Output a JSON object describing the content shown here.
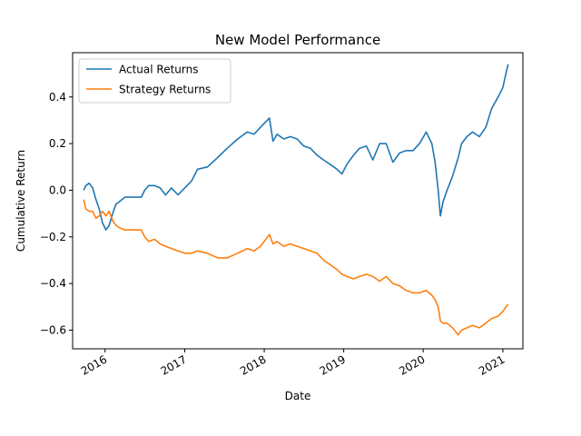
{
  "chart_data": {
    "type": "line",
    "title": "New Model Performance",
    "xlabel": "Date",
    "ylabel": "Cumulative Return",
    "x_type": "date",
    "xlim": [
      "2015-08-05",
      "2021-04-03"
    ],
    "ylim": [
      -0.68,
      0.59
    ],
    "x_ticks": [
      "2016-01-01",
      "2017-01-01",
      "2018-01-01",
      "2019-01-01",
      "2020-01-01",
      "2021-01-01"
    ],
    "x_tick_labels": [
      "2016",
      "2017",
      "2018",
      "2019",
      "2020",
      "2021"
    ],
    "y_ticks": [
      0.4,
      0.2,
      0.0,
      -0.2,
      -0.4,
      -0.6
    ],
    "y_tick_labels": [
      "0.4",
      "0.2",
      "0.0",
      "−0.2",
      "−0.4",
      "−0.6"
    ],
    "grid": false,
    "legend": "top-left",
    "series": [
      {
        "name": "Actual Returns",
        "color": "#1f77b4",
        "points": [
          [
            "2015-09-25",
            0.0
          ],
          [
            "2015-10-05",
            0.02
          ],
          [
            "2015-10-20",
            0.03
          ],
          [
            "2015-11-05",
            0.01
          ],
          [
            "2015-11-20",
            -0.04
          ],
          [
            "2015-12-05",
            -0.08
          ],
          [
            "2015-12-20",
            -0.14
          ],
          [
            "2016-01-05",
            -0.17
          ],
          [
            "2016-01-20",
            -0.15
          ],
          [
            "2016-02-05",
            -0.1
          ],
          [
            "2016-02-20",
            -0.06
          ],
          [
            "2016-03-05",
            -0.05
          ],
          [
            "2016-04-01",
            -0.03
          ],
          [
            "2016-06-15",
            -0.03
          ],
          [
            "2016-07-01",
            0.0
          ],
          [
            "2016-07-20",
            0.02
          ],
          [
            "2016-08-15",
            0.02
          ],
          [
            "2016-09-10",
            0.01
          ],
          [
            "2016-10-05",
            -0.02
          ],
          [
            "2016-11-01",
            0.01
          ],
          [
            "2016-12-01",
            -0.02
          ],
          [
            "2017-01-01",
            0.01
          ],
          [
            "2017-02-01",
            0.04
          ],
          [
            "2017-03-01",
            0.09
          ],
          [
            "2017-04-15",
            0.1
          ],
          [
            "2017-06-01",
            0.14
          ],
          [
            "2017-07-15",
            0.18
          ],
          [
            "2017-09-01",
            0.22
          ],
          [
            "2017-10-15",
            0.25
          ],
          [
            "2017-11-15",
            0.24
          ],
          [
            "2017-12-15",
            0.27
          ],
          [
            "2018-01-25",
            0.31
          ],
          [
            "2018-02-10",
            0.21
          ],
          [
            "2018-03-01",
            0.24
          ],
          [
            "2018-04-01",
            0.22
          ],
          [
            "2018-05-01",
            0.23
          ],
          [
            "2018-06-01",
            0.22
          ],
          [
            "2018-07-01",
            0.19
          ],
          [
            "2018-08-01",
            0.18
          ],
          [
            "2018-09-01",
            0.15
          ],
          [
            "2018-10-01",
            0.13
          ],
          [
            "2018-11-01",
            0.11
          ],
          [
            "2018-12-01",
            0.09
          ],
          [
            "2018-12-24",
            0.07
          ],
          [
            "2019-01-15",
            0.11
          ],
          [
            "2019-02-15",
            0.15
          ],
          [
            "2019-03-15",
            0.18
          ],
          [
            "2019-04-15",
            0.19
          ],
          [
            "2019-05-15",
            0.13
          ],
          [
            "2019-06-15",
            0.2
          ],
          [
            "2019-07-15",
            0.2
          ],
          [
            "2019-08-15",
            0.12
          ],
          [
            "2019-09-15",
            0.16
          ],
          [
            "2019-10-15",
            0.17
          ],
          [
            "2019-11-15",
            0.17
          ],
          [
            "2019-12-15",
            0.2
          ],
          [
            "2020-01-15",
            0.25
          ],
          [
            "2020-02-10",
            0.2
          ],
          [
            "2020-02-25",
            0.12
          ],
          [
            "2020-03-10",
            0.0
          ],
          [
            "2020-03-20",
            -0.11
          ],
          [
            "2020-04-01",
            -0.05
          ],
          [
            "2020-04-20",
            0.0
          ],
          [
            "2020-05-15",
            0.06
          ],
          [
            "2020-06-10",
            0.14
          ],
          [
            "2020-06-25",
            0.2
          ],
          [
            "2020-07-20",
            0.23
          ],
          [
            "2020-08-15",
            0.25
          ],
          [
            "2020-09-15",
            0.23
          ],
          [
            "2020-10-15",
            0.27
          ],
          [
            "2020-11-10",
            0.35
          ],
          [
            "2020-12-10",
            0.4
          ],
          [
            "2021-01-01",
            0.44
          ],
          [
            "2021-01-15",
            0.5
          ],
          [
            "2021-01-25",
            0.54
          ]
        ]
      },
      {
        "name": "Strategy Returns",
        "color": "#ff7f0e",
        "points": [
          [
            "2015-09-25",
            -0.04
          ],
          [
            "2015-10-05",
            -0.08
          ],
          [
            "2015-10-20",
            -0.09
          ],
          [
            "2015-11-05",
            -0.09
          ],
          [
            "2015-11-20",
            -0.12
          ],
          [
            "2015-12-05",
            -0.11
          ],
          [
            "2015-12-20",
            -0.09
          ],
          [
            "2016-01-05",
            -0.11
          ],
          [
            "2016-01-20",
            -0.09
          ],
          [
            "2016-02-05",
            -0.13
          ],
          [
            "2016-02-20",
            -0.15
          ],
          [
            "2016-03-05",
            -0.16
          ],
          [
            "2016-04-01",
            -0.17
          ],
          [
            "2016-06-15",
            -0.17
          ],
          [
            "2016-07-01",
            -0.2
          ],
          [
            "2016-07-20",
            -0.22
          ],
          [
            "2016-08-15",
            -0.21
          ],
          [
            "2016-09-10",
            -0.23
          ],
          [
            "2016-10-05",
            -0.24
          ],
          [
            "2016-11-01",
            -0.25
          ],
          [
            "2016-12-01",
            -0.26
          ],
          [
            "2017-01-01",
            -0.27
          ],
          [
            "2017-02-01",
            -0.27
          ],
          [
            "2017-03-01",
            -0.26
          ],
          [
            "2017-04-15",
            -0.27
          ],
          [
            "2017-06-01",
            -0.29
          ],
          [
            "2017-07-15",
            -0.29
          ],
          [
            "2017-09-01",
            -0.27
          ],
          [
            "2017-10-15",
            -0.25
          ],
          [
            "2017-11-15",
            -0.26
          ],
          [
            "2017-12-15",
            -0.24
          ],
          [
            "2018-01-25",
            -0.19
          ],
          [
            "2018-02-10",
            -0.23
          ],
          [
            "2018-03-01",
            -0.22
          ],
          [
            "2018-04-01",
            -0.24
          ],
          [
            "2018-05-01",
            -0.23
          ],
          [
            "2018-06-01",
            -0.24
          ],
          [
            "2018-07-01",
            -0.25
          ],
          [
            "2018-08-01",
            -0.26
          ],
          [
            "2018-09-01",
            -0.27
          ],
          [
            "2018-10-01",
            -0.3
          ],
          [
            "2018-11-01",
            -0.32
          ],
          [
            "2018-12-01",
            -0.34
          ],
          [
            "2018-12-24",
            -0.36
          ],
          [
            "2019-01-15",
            -0.37
          ],
          [
            "2019-02-15",
            -0.38
          ],
          [
            "2019-03-15",
            -0.37
          ],
          [
            "2019-04-15",
            -0.36
          ],
          [
            "2019-05-15",
            -0.37
          ],
          [
            "2019-06-15",
            -0.39
          ],
          [
            "2019-07-15",
            -0.37
          ],
          [
            "2019-08-15",
            -0.4
          ],
          [
            "2019-09-15",
            -0.41
          ],
          [
            "2019-10-15",
            -0.43
          ],
          [
            "2019-11-15",
            -0.44
          ],
          [
            "2019-12-15",
            -0.44
          ],
          [
            "2020-01-15",
            -0.43
          ],
          [
            "2020-02-10",
            -0.45
          ],
          [
            "2020-02-25",
            -0.47
          ],
          [
            "2020-03-10",
            -0.5
          ],
          [
            "2020-03-20",
            -0.56
          ],
          [
            "2020-04-01",
            -0.57
          ],
          [
            "2020-04-20",
            -0.57
          ],
          [
            "2020-05-15",
            -0.59
          ],
          [
            "2020-06-10",
            -0.62
          ],
          [
            "2020-06-25",
            -0.6
          ],
          [
            "2020-07-20",
            -0.59
          ],
          [
            "2020-08-15",
            -0.58
          ],
          [
            "2020-09-15",
            -0.59
          ],
          [
            "2020-10-15",
            -0.57
          ],
          [
            "2020-11-10",
            -0.55
          ],
          [
            "2020-12-10",
            -0.54
          ],
          [
            "2021-01-01",
            -0.52
          ],
          [
            "2021-01-15",
            -0.5
          ],
          [
            "2021-01-25",
            -0.49
          ]
        ]
      }
    ]
  }
}
